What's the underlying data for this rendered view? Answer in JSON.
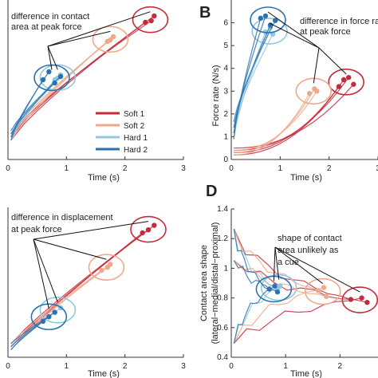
{
  "colors": {
    "soft1": "#c62a3b",
    "soft2": "#f0a88a",
    "hard1": "#8ec9df",
    "hard2": "#2a73b2"
  },
  "legend": [
    "Soft 1",
    "Soft 2",
    "Hard 1",
    "Hard 2"
  ],
  "chart_data": [
    {
      "type": "line",
      "panel": "A",
      "xlabel": "Time (s)",
      "ylabel": "",
      "xlim": [
        0,
        3
      ],
      "xticks": [
        "0",
        "1",
        "2",
        "3"
      ],
      "annotation": "difference in contact area at peak force",
      "series": [
        {
          "name": "Soft 1",
          "peaks": [
            [
              2.35,
              0.86
            ],
            [
              2.5,
              0.9
            ],
            [
              2.45,
              0.87
            ]
          ]
        },
        {
          "name": "Soft 2",
          "peaks": [
            [
              1.7,
              0.74
            ],
            [
              1.8,
              0.77
            ],
            [
              1.75,
              0.75
            ]
          ]
        },
        {
          "name": "Hard 1",
          "peaks": [
            [
              0.8,
              0.5
            ],
            [
              0.9,
              0.53
            ],
            [
              0.85,
              0.51
            ]
          ]
        },
        {
          "name": "Hard 2",
          "peaks": [
            [
              0.6,
              0.5
            ],
            [
              0.7,
              0.55
            ],
            [
              0.8,
              0.48
            ],
            [
              0.9,
              0.52
            ]
          ]
        }
      ]
    },
    {
      "type": "line",
      "panel": "B",
      "xlabel": "Time (s)",
      "ylabel": "Force rate (N/s)",
      "xlim": [
        0,
        3
      ],
      "ylim": [
        0,
        7
      ],
      "xticks": [
        "0",
        "1",
        "2",
        "3"
      ],
      "yticks": [
        "0",
        "1",
        "2",
        "3",
        "4",
        "5",
        "6"
      ],
      "annotation": "difference in force rate at peak force",
      "series": [
        {
          "name": "Soft 1",
          "peaks": [
            [
              2.2,
              3.2
            ],
            [
              2.3,
              3.5
            ],
            [
              2.4,
              3.6
            ],
            [
              2.5,
              3.3
            ]
          ]
        },
        {
          "name": "Soft 2",
          "peaks": [
            [
              1.6,
              2.9
            ],
            [
              1.7,
              3.1
            ],
            [
              1.75,
              3.0
            ]
          ]
        },
        {
          "name": "Hard 1",
          "peaks": [
            [
              0.7,
              5.6
            ],
            [
              0.8,
              5.8
            ],
            [
              0.85,
              5.5
            ]
          ]
        },
        {
          "name": "Hard 2",
          "peaks": [
            [
              0.6,
              6.2
            ],
            [
              0.7,
              6.3
            ],
            [
              0.8,
              5.9
            ],
            [
              0.9,
              6.1
            ]
          ]
        }
      ]
    },
    {
      "type": "line",
      "panel": "C",
      "xlabel": "Time (s)",
      "ylabel": "",
      "xlim": [
        0,
        3
      ],
      "xticks": [
        "0",
        "1",
        "2",
        "3"
      ],
      "annotation": "difference in displacement at peak force",
      "series": [
        {
          "name": "Soft 1",
          "peaks": [
            [
              2.3,
              0.83
            ],
            [
              2.4,
              0.85
            ],
            [
              2.5,
              0.88
            ]
          ]
        },
        {
          "name": "Soft 2",
          "peaks": [
            [
              1.6,
              0.58
            ],
            [
              1.7,
              0.6
            ],
            [
              1.75,
              0.62
            ]
          ]
        },
        {
          "name": "Hard 1",
          "peaks": [
            [
              0.8,
              0.3
            ],
            [
              0.9,
              0.33
            ]
          ]
        },
        {
          "name": "Hard 2",
          "peaks": [
            [
              0.6,
              0.24
            ],
            [
              0.7,
              0.27
            ],
            [
              0.8,
              0.3
            ]
          ]
        }
      ]
    },
    {
      "type": "line",
      "panel": "D",
      "xlabel": "Time (s)",
      "ylabel": "Contact area shape (lateral−medial/distal−proximal)",
      "xlim": [
        0,
        2.7
      ],
      "ylim": [
        0.4,
        1.4
      ],
      "xticks": [
        "0",
        "1",
        "2"
      ],
      "yticks": [
        "0.4",
        "0.6",
        "0.8",
        "1",
        "1.2",
        "1.4"
      ],
      "annotation": "shape of contact area unlikely as a cue",
      "series": [
        {
          "name": "Soft 1",
          "peaks": [
            [
              2.2,
              0.79
            ],
            [
              2.4,
              0.8
            ],
            [
              2.5,
              0.77
            ]
          ]
        },
        {
          "name": "Soft 2",
          "peaks": [
            [
              1.6,
              0.85
            ],
            [
              1.7,
              0.87
            ],
            [
              1.75,
              0.81
            ]
          ]
        },
        {
          "name": "Hard 1",
          "peaks": [
            [
              0.85,
              0.86
            ],
            [
              0.9,
              0.88
            ]
          ]
        },
        {
          "name": "Hard 2",
          "peaks": [
            [
              0.7,
              0.86
            ],
            [
              0.8,
              0.88
            ],
            [
              0.85,
              0.84
            ]
          ]
        }
      ]
    }
  ],
  "panel_letters": {
    "B": "B",
    "D": "D"
  }
}
